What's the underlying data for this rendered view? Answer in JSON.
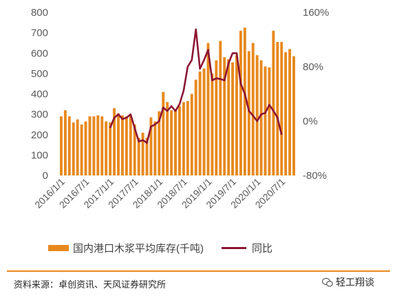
{
  "chart_data": {
    "type": "bar+line",
    "left_axis": {
      "ylim": [
        0,
        800
      ],
      "ticks": [
        "0",
        "100",
        "200",
        "300",
        "400",
        "500",
        "600",
        "700",
        "800"
      ]
    },
    "right_axis": {
      "ylim": [
        -80,
        160
      ],
      "ticks": [
        "-80%",
        "0%",
        "80%",
        "160%"
      ]
    },
    "x_tick_labels": [
      "2016/1/1",
      "2016/7/1",
      "2017/1/1",
      "2017/7/1",
      "2018/1/1",
      "2018/7/1",
      "2019/1/1",
      "2019/7/1",
      "2020/1/1",
      "2020/7/1"
    ],
    "bar_series": {
      "name": "国内港口木浆平均库存(千吨)",
      "color": "#E8891E",
      "values": [
        290,
        320,
        290,
        260,
        275,
        250,
        265,
        290,
        290,
        295,
        290,
        265,
        260,
        330,
        305,
        295,
        290,
        290,
        250,
        185,
        210,
        185,
        285,
        265,
        315,
        410,
        360,
        320,
        320,
        340,
        360,
        365,
        400,
        470,
        510,
        525,
        650,
        500,
        565,
        660,
        580,
        570,
        555,
        590,
        710,
        725,
        610,
        650,
        590,
        565,
        535,
        530,
        710,
        655,
        655,
        605,
        620,
        585
      ]
    },
    "line_series": {
      "name": "同比",
      "color": "#8C1433",
      "start_index": 12,
      "values": [
        -10,
        5,
        10,
        3,
        5,
        10,
        -10,
        -30,
        -28,
        -32,
        -8,
        -5,
        0,
        20,
        15,
        22,
        15,
        25,
        45,
        80,
        90,
        135,
        77,
        90,
        105,
        60,
        63,
        62,
        60,
        85,
        100,
        100,
        55,
        40,
        15,
        8,
        0,
        10,
        12,
        24,
        15,
        5,
        -20
      ]
    }
  },
  "legend": {
    "bar_label": "国内港口木浆平均库存(千吨)",
    "line_label": "同比"
  },
  "footer": {
    "source": "资料来源：卓创资讯、天风证券研究所",
    "brand": "轻工翔谈"
  },
  "colors": {
    "bar": "#E8891E",
    "line": "#8C1433",
    "rule": "#E8891E"
  }
}
